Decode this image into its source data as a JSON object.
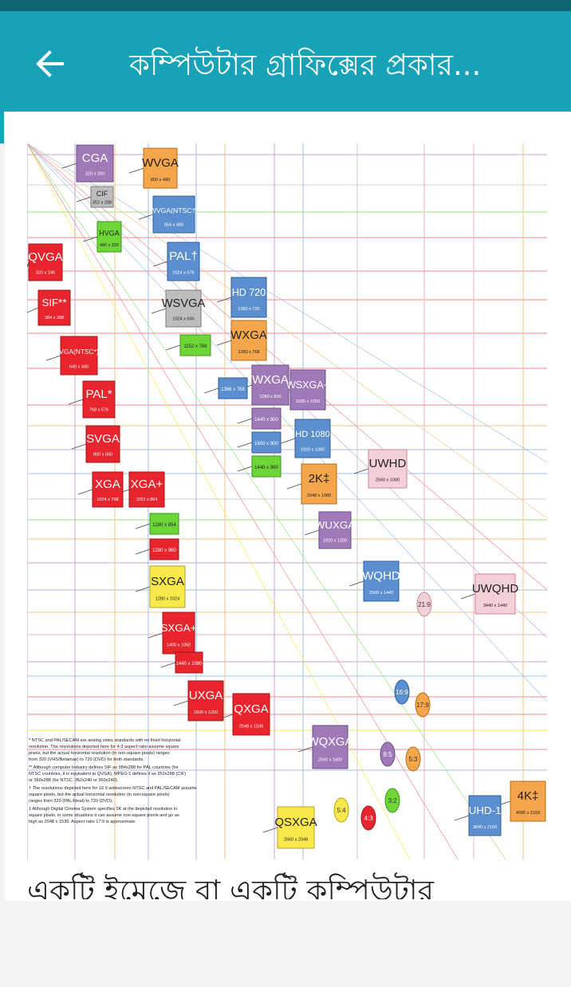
{
  "appbar": {
    "title": "কম্পিউটার গ্রাফিক্সের প্রকার...",
    "back_icon": "arrow-left-icon"
  },
  "article": {
    "caption": "একটি ইমেজে বা একটি কম্পিউটার"
  },
  "colors": {
    "statusbar": "#0c6470",
    "appbar": "#17a2b7",
    "red": "#e8242c",
    "blue": "#5b8fd0",
    "orange": "#f5a54a",
    "purple": "#a07ab8",
    "gray": "#bdbdbd",
    "green": "#6bd636",
    "yellow": "#f7e84b",
    "pink": "#f3cfd8"
  },
  "figure": {
    "boxes": [
      {
        "name": "CGA",
        "res": "320 x 200",
        "color": "purple"
      },
      {
        "name": "CIF",
        "res": "352 x 288",
        "color": "gray"
      },
      {
        "name": "HVGA",
        "res": "480 x 320",
        "color": "green"
      },
      {
        "name": "QVGA",
        "res": "320 x 240",
        "color": "red"
      },
      {
        "name": "SIF**",
        "res": "384 x 288",
        "color": "red"
      },
      {
        "name": "VGA(NTSC*)",
        "res": "640 x 480",
        "color": "red"
      },
      {
        "name": "PAL*",
        "res": "768 x 576",
        "color": "red"
      },
      {
        "name": "SVGA",
        "res": "800 x 600",
        "color": "red"
      },
      {
        "name": "XGA",
        "res": "1024 x 768",
        "color": "red"
      },
      {
        "name": "XGA+",
        "res": "1152 x 864",
        "color": "red"
      },
      {
        "name": "WVGA",
        "res": "800 x 480",
        "color": "orange"
      },
      {
        "name": "WVGA(NTSC†)",
        "res": "854 x 480",
        "color": "blue"
      },
      {
        "name": "PAL†",
        "res": "1024 x 576",
        "color": "blue"
      },
      {
        "name": "WSVGA",
        "res": "1024 x 600",
        "color": "gray"
      },
      {
        "name": "",
        "res": "1152 x 768",
        "color": "green"
      },
      {
        "name": "HD 720",
        "res": "1280 x 720",
        "color": "blue"
      },
      {
        "name": "WXGA",
        "res": "1280 x 768",
        "color": "orange"
      },
      {
        "name": "",
        "res": "1366 x 768",
        "color": "blue"
      },
      {
        "name": "WXGA",
        "res": "1280 x 800",
        "color": "purple"
      },
      {
        "name": "WSXGA+",
        "res": "1680 x 1050",
        "color": "purple"
      },
      {
        "name": "",
        "res": "1440 x 900",
        "color": "purple"
      },
      {
        "name": "",
        "res": "1600 x 900",
        "color": "blue"
      },
      {
        "name": "",
        "res": "1440 x 960",
        "color": "green"
      },
      {
        "name": "HD 1080",
        "res": "1920 x 1080",
        "color": "blue"
      },
      {
        "name": "2K‡",
        "res": "2048 x 1080",
        "color": "orange"
      },
      {
        "name": "UWHD",
        "res": "2560 x 1080",
        "color": "pink"
      },
      {
        "name": "WUXGA",
        "res": "1920 x 1200",
        "color": "purple"
      },
      {
        "name": "",
        "res": "1280 x 854",
        "color": "green"
      },
      {
        "name": "",
        "res": "1280 x 960",
        "color": "red"
      },
      {
        "name": "SXGA",
        "res": "1280 x 1024",
        "color": "yellow"
      },
      {
        "name": "SXGA+",
        "res": "1400 x 1050",
        "color": "red"
      },
      {
        "name": "",
        "res": "1440 x 1080",
        "color": "red"
      },
      {
        "name": "UXGA",
        "res": "1600 x 1200",
        "color": "red"
      },
      {
        "name": "QXGA",
        "res": "2048 x 1536",
        "color": "red"
      },
      {
        "name": "WQHD",
        "res": "2560 x 1440",
        "color": "blue"
      },
      {
        "name": "UWQHD",
        "res": "3440 x 1440",
        "color": "pink"
      },
      {
        "name": "WQXGA",
        "res": "2560 x 1600",
        "color": "purple"
      },
      {
        "name": "QSXGA",
        "res": "2560 x 2048",
        "color": "yellow"
      },
      {
        "name": "UHD-1",
        "res": "3840 x 2160",
        "color": "blue"
      },
      {
        "name": "4K‡",
        "res": "4096 x 2160",
        "color": "orange"
      }
    ],
    "ratios": [
      {
        "label": "21:9",
        "color": "pink"
      },
      {
        "label": "16:9",
        "color": "blue"
      },
      {
        "label": "17:9",
        "color": "orange"
      },
      {
        "label": "8:5",
        "color": "purple"
      },
      {
        "label": "5:3",
        "color": "orange"
      },
      {
        "label": "3:2",
        "color": "green"
      },
      {
        "label": "5:4",
        "color": "yellow"
      },
      {
        "label": "4:3",
        "color": "red"
      }
    ],
    "notes": [
      "* NTSC and PAL/SECAM are analog video standards with no fixed horizontal resolution. The resolutions depicted here for 4:3 aspect ratio assume square pixels, but the actual horizontal resolution (in non-square pixels) ranges from 320 (VHS/Betamax) to 720 (DVD) for both standards.",
      "** Although computer industry defines SIF as 384x288 for PAL countries (for NTSC countries, it is equivalent to QVGA), MPEG-1 defines it as 352x288 (CIF) or 360x288 (for NTSC: 352x240 or 360x240).",
      "† The resolutions depicted here for 16:9 widescreen NTSC and PAL/SECAM assume square pixels, but the actual horizontal resolution (in non-square pixels) ranges from 320 (PAL/Ideal) to 720 (DVD).",
      "‡ Although Digital Cinema System specifies 2K at the depicted resolution in square pixels, in some situations it can assume non-square pixels and go as high as 2048 x 1536. Aspect ratio 17:9 is approximate."
    ]
  }
}
